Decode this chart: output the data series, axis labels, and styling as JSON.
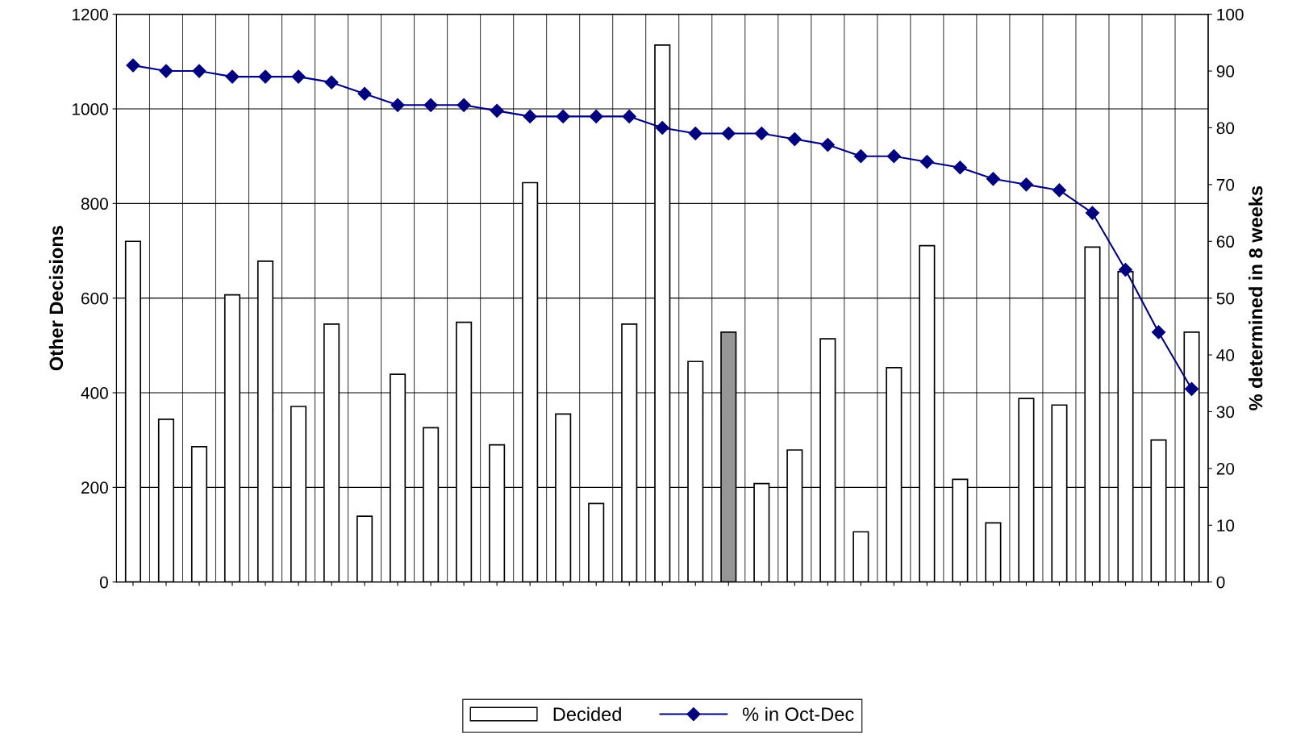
{
  "chart_data": {
    "type": "bar",
    "ylabel": "Other Decisions",
    "y2label": "% determined in 8 weeks",
    "categories": [
      null,
      null,
      null,
      null,
      null,
      null,
      null,
      null,
      null,
      null,
      null,
      null,
      null,
      null,
      null,
      null,
      null,
      null,
      null,
      null,
      null,
      null,
      null,
      null,
      null,
      null,
      null,
      null,
      null,
      null,
      null,
      null,
      null
    ],
    "series": [
      {
        "name": "Decided",
        "color": "#ffffff",
        "colors": [
          "#ffffff",
          "#ffffff",
          "#ffffff",
          "#ffffff",
          "#ffffff",
          "#ffffff",
          "#ffffff",
          "#ffffff",
          "#ffffff",
          "#ffffff",
          "#ffffff",
          "#ffffff",
          "#ffffff",
          "#ffffff",
          "#ffffff",
          "#ffffff",
          "#ffffff",
          "#ffffff",
          "#969696",
          "#ffffff",
          "#ffffff",
          "#ffffff",
          "#ffffff",
          "#ffffff",
          "#ffffff",
          "#ffffff",
          "#ffffff",
          "#ffffff",
          "#ffffff",
          "#ffffff",
          "#ffffff",
          "#ffffff",
          "#ffffff"
        ],
        "values": [
          720,
          344,
          286,
          607,
          678,
          371,
          545,
          139,
          439,
          326,
          549,
          290,
          844,
          355,
          166,
          545,
          1135,
          466,
          528,
          208,
          279,
          514,
          106,
          453,
          711,
          217,
          125,
          388,
          374,
          708,
          656,
          300,
          528
        ]
      },
      {
        "name": "% in Oct-Dec",
        "type": "line",
        "axis": "y2",
        "color": "#000080",
        "marker": "diamond",
        "line_style": "solid",
        "values": [
          91,
          90,
          90,
          89,
          89,
          89,
          88,
          86,
          84,
          84,
          84,
          83,
          82,
          82,
          82,
          82,
          80,
          79,
          79,
          79,
          78,
          77,
          75,
          75,
          74,
          73,
          71,
          70,
          69,
          65,
          55,
          44,
          34
        ]
      }
    ],
    "ylim": [
      0,
      1200
    ],
    "yticks": [
      0,
      200,
      400,
      600,
      800,
      1000,
      1200
    ],
    "y2lim": [
      0,
      100
    ],
    "y2ticks": [
      0,
      10,
      20,
      30,
      40,
      50,
      60,
      70,
      80,
      90,
      100
    ],
    "grid": true,
    "legend": "bottom"
  }
}
